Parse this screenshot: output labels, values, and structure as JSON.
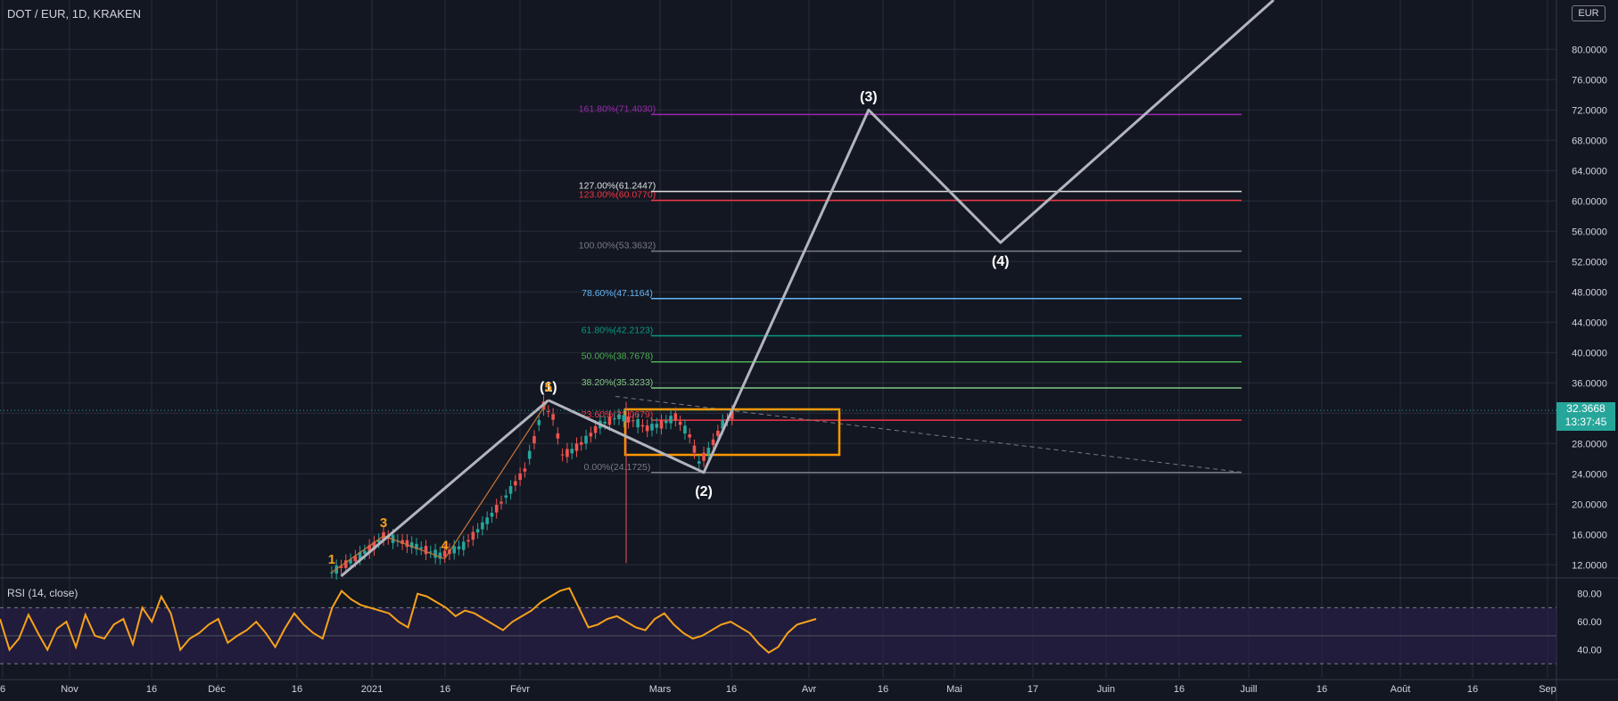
{
  "header": {
    "symbol_title": "DOT / EUR, 1D, KRAKEN",
    "currency": "EUR",
    "last_price": "32.3668",
    "countdown": "13:37:45"
  },
  "rsi_panel": {
    "title": "RSI (14, close)",
    "ticks": [
      "80.00",
      "60.00",
      "40.00"
    ]
  },
  "chart_data": {
    "type": "line",
    "x_axis_labels": [
      "6",
      "Nov",
      "16",
      "Déc",
      "16",
      "2021",
      "16",
      "Févr",
      "Mars",
      "16",
      "Avr",
      "16",
      "Mai",
      "17",
      "Juin",
      "16",
      "Juill",
      "16",
      "Août",
      "16",
      "Sep"
    ],
    "y_axis": {
      "ticks": [
        "80.0000",
        "76.0000",
        "72.0000",
        "68.0000",
        "64.0000",
        "60.0000",
        "56.0000",
        "52.0000",
        "48.0000",
        "44.0000",
        "40.0000",
        "36.0000",
        "32.0000",
        "28.0000",
        "24.0000",
        "20.0000",
        "16.0000",
        "12.0000"
      ],
      "ylim": [
        10.5,
        86.5
      ]
    },
    "price_series": [
      {
        "x": "2021-01-05",
        "y": 11.0
      },
      {
        "x": "2021-01-10",
        "y": 12.8
      },
      {
        "x": "2021-01-14",
        "y": 14.5
      },
      {
        "x": "2021-01-16",
        "y": 15.8
      },
      {
        "x": "2021-01-20",
        "y": 15.0
      },
      {
        "x": "2021-01-24",
        "y": 14.2
      },
      {
        "x": "2021-01-28",
        "y": 13.2
      },
      {
        "x": "2021-02-02",
        "y": 14.5
      },
      {
        "x": "2021-02-07",
        "y": 17.8
      },
      {
        "x": "2021-02-11",
        "y": 21.0
      },
      {
        "x": "2021-02-15",
        "y": 24.5
      },
      {
        "x": "2021-02-17",
        "y": 28.5
      },
      {
        "x": "2021-02-19",
        "y": 33.0
      },
      {
        "x": "2021-02-21",
        "y": 31.5
      },
      {
        "x": "2021-02-23",
        "y": 26.5
      },
      {
        "x": "2021-02-25",
        "y": 27.0
      },
      {
        "x": "2021-02-28",
        "y": 28.5
      },
      {
        "x": "2021-03-03",
        "y": 30.5
      },
      {
        "x": "2021-03-07",
        "y": 31.5
      },
      {
        "x": "2021-03-10",
        "y": 31.0
      },
      {
        "x": "2021-03-13",
        "y": 30.0
      },
      {
        "x": "2021-03-16",
        "y": 30.5
      },
      {
        "x": "2021-03-19",
        "y": 31.5
      },
      {
        "x": "2021-03-22",
        "y": 29.0
      },
      {
        "x": "2021-03-24",
        "y": 25.5
      },
      {
        "x": "2021-03-26",
        "y": 27.0
      },
      {
        "x": "2021-03-29",
        "y": 30.5
      },
      {
        "x": "2021-04-01",
        "y": 32.37
      }
    ],
    "fib_levels": [
      {
        "label": "0.00%(24.1725)",
        "value": 24.1725,
        "color": "#787b86"
      },
      {
        "label": "23.60%(31.0679)",
        "value": 31.0679,
        "color": "#f23645"
      },
      {
        "label": "38.20%(35.3233)",
        "value": 35.3233,
        "color": "#81c784"
      },
      {
        "label": "50.00%(38.7678)",
        "value": 38.7678,
        "color": "#4caf50"
      },
      {
        "label": "61.80%(42.2123)",
        "value": 42.2123,
        "color": "#089981"
      },
      {
        "label": "78.60%(47.1164)",
        "value": 47.1164,
        "color": "#64b5f6"
      },
      {
        "label": "100.00%(53.3632)",
        "value": 53.3632,
        "color": "#787b86"
      },
      {
        "label": "123.00%(60.0770)",
        "value": 60.077,
        "color": "#f23645"
      },
      {
        "label": "127.00%(61.2447)",
        "value": 61.2447,
        "color": "#e0e0e0"
      },
      {
        "label": "161.80%(71.4030)",
        "value": 71.403,
        "color": "#9c27b0"
      }
    ],
    "wave_labels": [
      {
        "text": "(1)",
        "x": "2021-02-20",
        "y": 33.7
      },
      {
        "text": "(2)",
        "x": "2021-03-25",
        "y": 24.17
      },
      {
        "text": "(3)",
        "x": "2021-04-29",
        "y": 72.0
      },
      {
        "text": "(4)",
        "x": "2021-05-27",
        "y": 54.5
      },
      {
        "text": "1",
        "x": "2021-01-05",
        "y": 11.0
      },
      {
        "text": "3",
        "x": "2021-01-16",
        "y": 15.8
      },
      {
        "text": "4",
        "x": "2021-01-29",
        "y": 12.8
      },
      {
        "text": "5",
        "x": "2021-02-20",
        "y": 33.7
      }
    ],
    "elliott_path": [
      {
        "x": "2021-02-20",
        "y": 33.7
      },
      {
        "x": "2021-03-25",
        "y": 24.17
      },
      {
        "x": "2021-04-29",
        "y": 72.0
      },
      {
        "x": "2021-05-27",
        "y": 54.5
      },
      {
        "x": "2021-07-24",
        "y": 86.5
      }
    ],
    "rsi_series": [
      62,
      40,
      48,
      65,
      52,
      40,
      55,
      60,
      42,
      65,
      50,
      48,
      58,
      62,
      44,
      70,
      60,
      78,
      66,
      40,
      48,
      52,
      58,
      62,
      45,
      50,
      54,
      60,
      52,
      42,
      55,
      66,
      58,
      52,
      48,
      70,
      82,
      76,
      72,
      70,
      68,
      66,
      60,
      56,
      80,
      78,
      74,
      70,
      64,
      68,
      66,
      62,
      58,
      54,
      60,
      64,
      68,
      74,
      78,
      82,
      84,
      70,
      56,
      58,
      62,
      64,
      60,
      56,
      54,
      62,
      66,
      58,
      52,
      48,
      50,
      54,
      58,
      60,
      56,
      52,
      44,
      38,
      42,
      52,
      58,
      60,
      62
    ]
  },
  "colors": {
    "bg": "#131722",
    "grid": "#2a2e39",
    "axis_text": "#d1d4dc",
    "up": "#26a69a",
    "down": "#ef5350",
    "wave": "#b2b5be",
    "rsi": "#f7a21b",
    "rsi_band": "#2a1f4a",
    "box": "#ff9800"
  }
}
